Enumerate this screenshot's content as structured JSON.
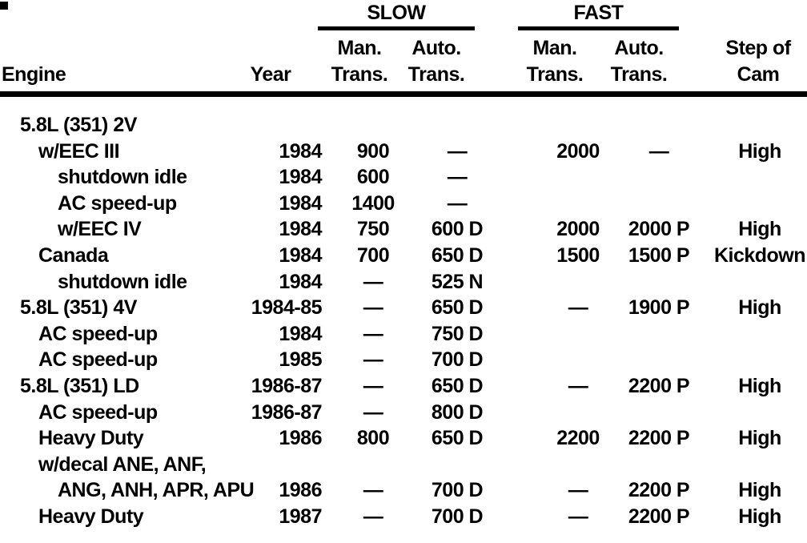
{
  "colors": {
    "ink": "#000000",
    "paper": "#ffffff"
  },
  "table": {
    "group_headers": {
      "slow": "SLOW",
      "fast": "FAST"
    },
    "col_headers": {
      "engine": "Engine",
      "year": "Year",
      "slow_man": [
        "Man.",
        "Trans."
      ],
      "slow_auto": [
        "Auto.",
        "Trans."
      ],
      "fast_man": [
        "Man.",
        "Trans."
      ],
      "fast_auto": [
        "Auto.",
        "Trans."
      ],
      "cam": [
        "Step of",
        "Cam"
      ]
    },
    "rows": [
      {
        "engine": "5.8L (351) 2V",
        "indent": 1,
        "year": "",
        "slow_man": "",
        "slow_auto": "",
        "fast_man": "",
        "fast_auto": "",
        "cam": ""
      },
      {
        "engine": "w/EEC III",
        "indent": 2,
        "year": "1984",
        "slow_man": "900",
        "slow_auto": "—",
        "fast_man": "2000",
        "fast_auto": "—",
        "cam": "High"
      },
      {
        "engine": "shutdown idle",
        "indent": 3,
        "year": "1984",
        "slow_man": "600",
        "slow_auto": "—",
        "fast_man": "",
        "fast_auto": "",
        "cam": ""
      },
      {
        "engine": "AC speed-up",
        "indent": 3,
        "year": "1984",
        "slow_man": "1400",
        "slow_auto": "—",
        "fast_man": "",
        "fast_auto": "",
        "cam": ""
      },
      {
        "engine": "w/EEC IV",
        "indent": 3,
        "year": "1984",
        "slow_man": "750",
        "slow_auto": "600 D",
        "fast_man": "2000",
        "fast_auto": "2000 P",
        "cam": "High"
      },
      {
        "engine": "Canada",
        "indent": 2,
        "year": "1984",
        "slow_man": "700",
        "slow_auto": "650 D",
        "fast_man": "1500",
        "fast_auto": "1500 P",
        "cam": "Kickdown"
      },
      {
        "engine": "shutdown idle",
        "indent": 3,
        "year": "1984",
        "slow_man": "—",
        "slow_auto": "525 N",
        "fast_man": "",
        "fast_auto": "",
        "cam": ""
      },
      {
        "engine": "5.8L (351) 4V",
        "indent": 1,
        "year": "1984-85",
        "slow_man": "—",
        "slow_auto": "650 D",
        "fast_man": "—",
        "fast_auto": "1900 P",
        "cam": "High"
      },
      {
        "engine": "AC speed-up",
        "indent": 2,
        "year": "1984",
        "slow_man": "—",
        "slow_auto": "750 D",
        "fast_man": "",
        "fast_auto": "",
        "cam": ""
      },
      {
        "engine": "AC speed-up",
        "indent": 2,
        "year": "1985",
        "slow_man": "—",
        "slow_auto": "700 D",
        "fast_man": "",
        "fast_auto": "",
        "cam": ""
      },
      {
        "engine": "5.8L (351) LD",
        "indent": 1,
        "year": "1986-87",
        "slow_man": "—",
        "slow_auto": "650 D",
        "fast_man": "—",
        "fast_auto": "2200 P",
        "cam": "High"
      },
      {
        "engine": "AC speed-up",
        "indent": 2,
        "year": "1986-87",
        "slow_man": "—",
        "slow_auto": "800 D",
        "fast_man": "",
        "fast_auto": "",
        "cam": ""
      },
      {
        "engine": "Heavy Duty",
        "indent": 2,
        "year": "1986",
        "slow_man": "800",
        "slow_auto": "650 D",
        "fast_man": "2200",
        "fast_auto": "2200 P",
        "cam": "High"
      },
      {
        "engine": "w/decal ANE, ANF,",
        "indent": 2,
        "year": "",
        "slow_man": "",
        "slow_auto": "",
        "fast_man": "",
        "fast_auto": "",
        "cam": ""
      },
      {
        "engine": "ANG, ANH, APR, APU",
        "indent": 3,
        "year": "1986",
        "slow_man": "—",
        "slow_auto": "700 D",
        "fast_man": "—",
        "fast_auto": "2200 P",
        "cam": "High"
      },
      {
        "engine": "Heavy Duty",
        "indent": 2,
        "year": "1987",
        "slow_man": "—",
        "slow_auto": "700 D",
        "fast_man": "—",
        "fast_auto": "2200 P",
        "cam": "High"
      }
    ]
  }
}
